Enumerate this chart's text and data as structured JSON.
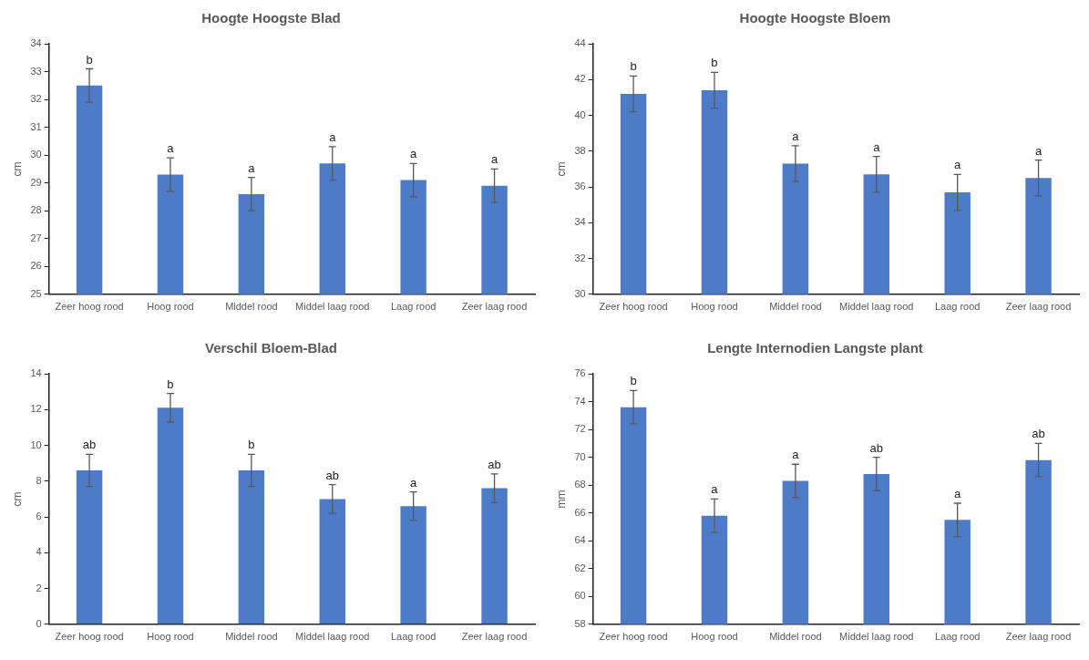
{
  "chart_data": [
    {
      "type": "bar",
      "title": "Hoogte Hoogste Blad",
      "ylabel": "cm",
      "categories": [
        "Zeer hoog rood",
        "Hoog rood",
        "Middel rood",
        "Middel laag rood",
        "Laag rood",
        "Zeer laag rood"
      ],
      "values": [
        32.5,
        29.3,
        28.6,
        29.7,
        29.1,
        28.9
      ],
      "errors": [
        0.6,
        0.6,
        0.6,
        0.6,
        0.6,
        0.6
      ],
      "color": "#4e7bc8",
      "ylim": [
        25,
        34
      ],
      "yticks": [
        25,
        26,
        27,
        28,
        29,
        30,
        31,
        32,
        33,
        34
      ],
      "grid": false,
      "legend": false,
      "annotations": [
        {
          "text": "b",
          "x": "Zeer hoog rood",
          "y": 33.1
        },
        {
          "text": "a",
          "x": "Hoog rood",
          "y": 29.9
        },
        {
          "text": "a",
          "x": "Middel rood",
          "y": 29.2
        },
        {
          "text": "a",
          "x": "Middel laag rood",
          "y": 30.3
        },
        {
          "text": "a",
          "x": "Laag rood",
          "y": 29.7
        },
        {
          "text": "a",
          "x": "Zeer laag rood",
          "y": 29.5
        }
      ]
    },
    {
      "type": "bar",
      "title": "Hoogte Hoogste Bloem",
      "ylabel": "cm",
      "categories": [
        "Zeer hoog rood",
        "Hoog rood",
        "Middel rood",
        "Middel laag rood",
        "Laag rood",
        "Zeer laag rood"
      ],
      "values": [
        41.2,
        41.4,
        37.3,
        36.7,
        35.7,
        36.5
      ],
      "errors": [
        1,
        1,
        1,
        1,
        1,
        1
      ],
      "color": "#4e7bc8",
      "ylim": [
        30,
        44
      ],
      "yticks": [
        30,
        32,
        34,
        36,
        38,
        40,
        42,
        44
      ],
      "grid": false,
      "legend": false,
      "annotations": [
        {
          "text": "b",
          "x": "Zeer hoog rood",
          "y": 42.2
        },
        {
          "text": "b",
          "x": "Hoog rood",
          "y": 42.4
        },
        {
          "text": "a",
          "x": "Middel rood",
          "y": 38.3
        },
        {
          "text": "a",
          "x": "Middel laag rood",
          "y": 37.7
        },
        {
          "text": "a",
          "x": "Laag rood",
          "y": 36.7
        },
        {
          "text": "a",
          "x": "Zeer laag rood",
          "y": 37.5
        }
      ]
    },
    {
      "type": "bar",
      "title": "Verschil Bloem-Blad",
      "ylabel": "cm",
      "categories": [
        "Zeer hoog rood",
        "Hoog rood",
        "Middel rood",
        "Middel laag rood",
        "Laag rood",
        "Zeer laag rood"
      ],
      "values": [
        8.6,
        12.1,
        8.6,
        7.0,
        6.6,
        7.6
      ],
      "errors": [
        0.9,
        0.8,
        0.9,
        0.8,
        0.8,
        0.8
      ],
      "color": "#4e7bc8",
      "ylim": [
        0,
        14
      ],
      "yticks": [
        0,
        2,
        4,
        6,
        8,
        10,
        12,
        14
      ],
      "grid": false,
      "legend": false,
      "annotations": [
        {
          "text": "ab",
          "x": "Zeer hoog rood",
          "y": 9.5
        },
        {
          "text": "b",
          "x": "Hoog rood",
          "y": 12.9
        },
        {
          "text": "b",
          "x": "Middel rood",
          "y": 9.5
        },
        {
          "text": "ab",
          "x": "Middel laag rood",
          "y": 7.8
        },
        {
          "text": "a",
          "x": "Laag rood",
          "y": 7.4
        },
        {
          "text": "ab",
          "x": "Zeer laag rood",
          "y": 8.4
        }
      ]
    },
    {
      "type": "bar",
      "title": "Lengte Internodien Langste plant",
      "ylabel": "mm",
      "categories": [
        "Zeer hoog rood",
        "Hoog rood",
        "Middel rood",
        "Middel laag rood",
        "Laag rood",
        "Zeer laag rood"
      ],
      "values": [
        73.6,
        65.8,
        68.3,
        68.8,
        65.5,
        69.8
      ],
      "errors": [
        1.2,
        1.2,
        1.2,
        1.2,
        1.2,
        1.2
      ],
      "color": "#4e7bc8",
      "ylim": [
        58,
        76
      ],
      "yticks": [
        58,
        60,
        62,
        64,
        66,
        68,
        70,
        72,
        74,
        76
      ],
      "grid": false,
      "legend": false,
      "annotations": [
        {
          "text": "b",
          "x": "Zeer hoog rood",
          "y": 74.8
        },
        {
          "text": "a",
          "x": "Hoog rood",
          "y": 67
        },
        {
          "text": "a",
          "x": "Middel rood",
          "y": 69.5
        },
        {
          "text": "ab",
          "x": "Middel laag rood",
          "y": 70
        },
        {
          "text": "a",
          "x": "Laag rood",
          "y": 66.7
        },
        {
          "text": "ab",
          "x": "Zeer laag rood",
          "y": 71
        }
      ]
    }
  ]
}
